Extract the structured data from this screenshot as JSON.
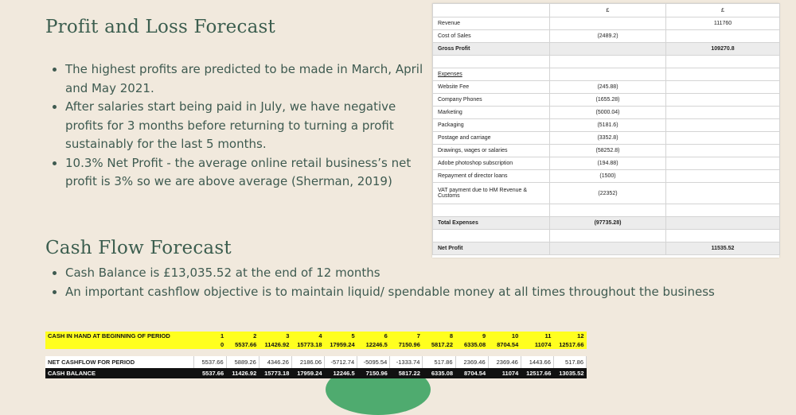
{
  "pl_section": {
    "title": "Profit and Loss Forecast",
    "bullets": [
      "The highest profits are predicted to be made in March, April and May 2021.",
      "After salaries start being paid in July, we have negative profits for 3 months before returning to turning a profit sustainably for the last 5 months.",
      "10.3% Net Profit - the average online retail business’s net profit is 3% so we are above average (Sherman, 2019)"
    ]
  },
  "cf_section": {
    "title": "Cash Flow Forecast",
    "bullets": [
      "Cash Balance is £13,035.52 at the end of 12 months",
      "An important cashflow objective is to maintain liquid/ spendable money at all times throughout the business"
    ]
  },
  "pl_table": {
    "header": [
      "",
      "£",
      "£"
    ],
    "rows": [
      [
        "Revenue",
        "",
        "111760"
      ],
      [
        "Cost of Sales",
        "(2489.2)",
        ""
      ],
      [
        "Gross Profit",
        "",
        "109270.8"
      ],
      [
        "",
        "",
        ""
      ],
      [
        "Expenses",
        "",
        ""
      ],
      [
        "Website Fee",
        "(245.88)",
        ""
      ],
      [
        "Company Phones",
        "(1655.28)",
        ""
      ],
      [
        "Marketing",
        "(5000.04)",
        ""
      ],
      [
        "Packaging",
        "(5181.6)",
        ""
      ],
      [
        "Postage and carriage",
        "(3352.8)",
        ""
      ],
      [
        "Drawings, wages or salaries",
        "(58252.8)",
        ""
      ],
      [
        "Adobe photoshop subscription",
        "(194.88)",
        ""
      ],
      [
        "Repayment of director loans",
        "(1500)",
        ""
      ],
      [
        "VAT payment due to HM Revenue & Customs",
        "(22352)",
        ""
      ],
      [
        "",
        "",
        ""
      ],
      [
        "Total Expenses",
        "(97735.28)",
        ""
      ],
      [
        "",
        "",
        ""
      ],
      [
        "Net Profit",
        "",
        "11535.52"
      ]
    ]
  },
  "cf_table": {
    "opening_label": "CASH IN HAND AT BEGINNING OF PERIOD",
    "months": [
      "1",
      "2",
      "3",
      "4",
      "5",
      "6",
      "7",
      "8",
      "9",
      "10",
      "11",
      "12"
    ],
    "opening": [
      "0",
      "5537.66",
      "11426.92",
      "15773.18",
      "17959.24",
      "12246.5",
      "7150.96",
      "5817.22",
      "6335.08",
      "8704.54",
      "11074",
      "12517.66"
    ],
    "net_label": "NET CASHFLOW FOR PERIOD",
    "net": [
      "5537.66",
      "5889.26",
      "4346.26",
      "2186.06",
      "-5712.74",
      "-5095.54",
      "-1333.74",
      "517.86",
      "2369.46",
      "2369.46",
      "1443.66",
      "517.86"
    ],
    "balance_label": "CASH BALANCE",
    "balance": [
      "5537.66",
      "11426.92",
      "15773.18",
      "17959.24",
      "12246.5",
      "7150.96",
      "5817.22",
      "6335.08",
      "8704.54",
      "11074",
      "12517.66",
      "13035.52"
    ]
  },
  "colors": {
    "background": "#f1e9dd",
    "heading": "#3c5e4f",
    "yellow_band": "#ffff1f",
    "balance_band": "#111111",
    "highlight": "#33a05c"
  }
}
